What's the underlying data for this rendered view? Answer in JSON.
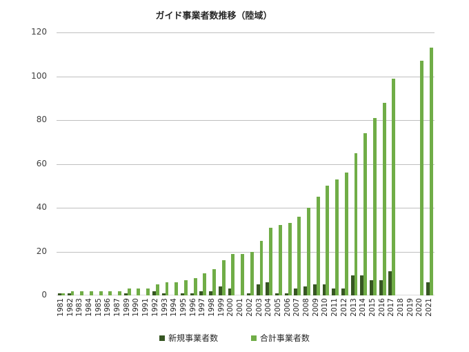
{
  "chart_data": {
    "type": "bar",
    "title": "ガイド事業者数推移（陸域）",
    "xlabel": "",
    "ylabel": "",
    "ylim": [
      0,
      120
    ],
    "yticks": [
      0,
      20,
      40,
      60,
      80,
      100,
      120
    ],
    "grid": true,
    "legend_position": "bottom",
    "categories": [
      "1981",
      "1982",
      "1983",
      "1984",
      "1985",
      "1986",
      "1987",
      "1989",
      "1990",
      "1991",
      "1992",
      "1993",
      "1994",
      "1995",
      "1996",
      "1997",
      "1998",
      "1999",
      "2000",
      "2001",
      "2002",
      "2003",
      "2004",
      "2005",
      "2006",
      "2007",
      "2008",
      "2009",
      "2010",
      "2011",
      "2012",
      "2013",
      "2014",
      "2015",
      "2016",
      "2017",
      "2018",
      "2019",
      "2020",
      "2021"
    ],
    "series": [
      {
        "name": "新規事業者数",
        "color": "#375623",
        "values": [
          1,
          1,
          0,
          0,
          0,
          0,
          0,
          1,
          0,
          0,
          2,
          1,
          0,
          1,
          1,
          2,
          2,
          4,
          3,
          0,
          1,
          5,
          6,
          1,
          1,
          3,
          4,
          5,
          5,
          3,
          3,
          9,
          9,
          7,
          7,
          11,
          0,
          0,
          0,
          6
        ]
      },
      {
        "name": "合計事業者数",
        "color": "#70ad47",
        "values": [
          1,
          2,
          2,
          2,
          2,
          2,
          2,
          3,
          3,
          3,
          5,
          6,
          6,
          7,
          8,
          10,
          12,
          16,
          19,
          19,
          20,
          25,
          31,
          32,
          33,
          36,
          40,
          45,
          50,
          53,
          56,
          65,
          74,
          81,
          88,
          99,
          0,
          0,
          107,
          113
        ]
      }
    ]
  },
  "legend": {
    "items": [
      {
        "label": "新規事業者数",
        "color": "#375623"
      },
      {
        "label": "合計事業者数",
        "color": "#70ad47"
      }
    ]
  }
}
